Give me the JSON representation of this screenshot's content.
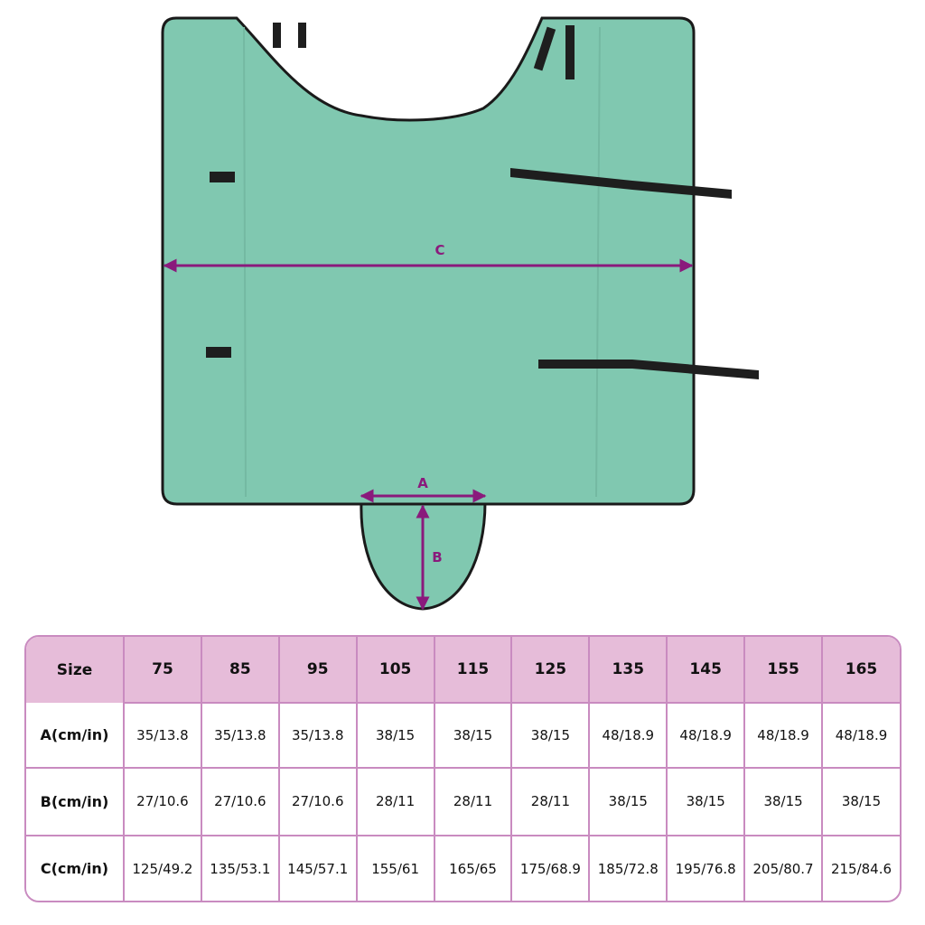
{
  "diagram": {
    "labels": {
      "a": "A",
      "b": "B",
      "c": "C"
    },
    "colors": {
      "fabric": "#80c8b0",
      "trim": "#1a1a1a",
      "arrow": "#8a1a7c"
    }
  },
  "size_table": {
    "header": [
      "Size",
      "75",
      "85",
      "95",
      "105",
      "115",
      "125",
      "135",
      "145",
      "155",
      "165"
    ],
    "rows": [
      {
        "label": "A(cm/in)",
        "values": [
          "35/13.8",
          "35/13.8",
          "35/13.8",
          "38/15",
          "38/15",
          "38/15",
          "48/18.9",
          "48/18.9",
          "48/18.9",
          "48/18.9"
        ]
      },
      {
        "label": "B(cm/in)",
        "values": [
          "27/10.6",
          "27/10.6",
          "27/10.6",
          "28/11",
          "28/11",
          "28/11",
          "38/15",
          "38/15",
          "38/15",
          "38/15"
        ]
      },
      {
        "label": "C(cm/in)",
        "values": [
          "125/49.2",
          "135/53.1",
          "145/57.1",
          "155/61",
          "165/65",
          "175/68.9",
          "185/72.8",
          "195/76.8",
          "205/80.7",
          "215/84.6"
        ]
      }
    ],
    "colors": {
      "header_bg": "#e6bcd9",
      "border": "#c98bc0"
    }
  }
}
